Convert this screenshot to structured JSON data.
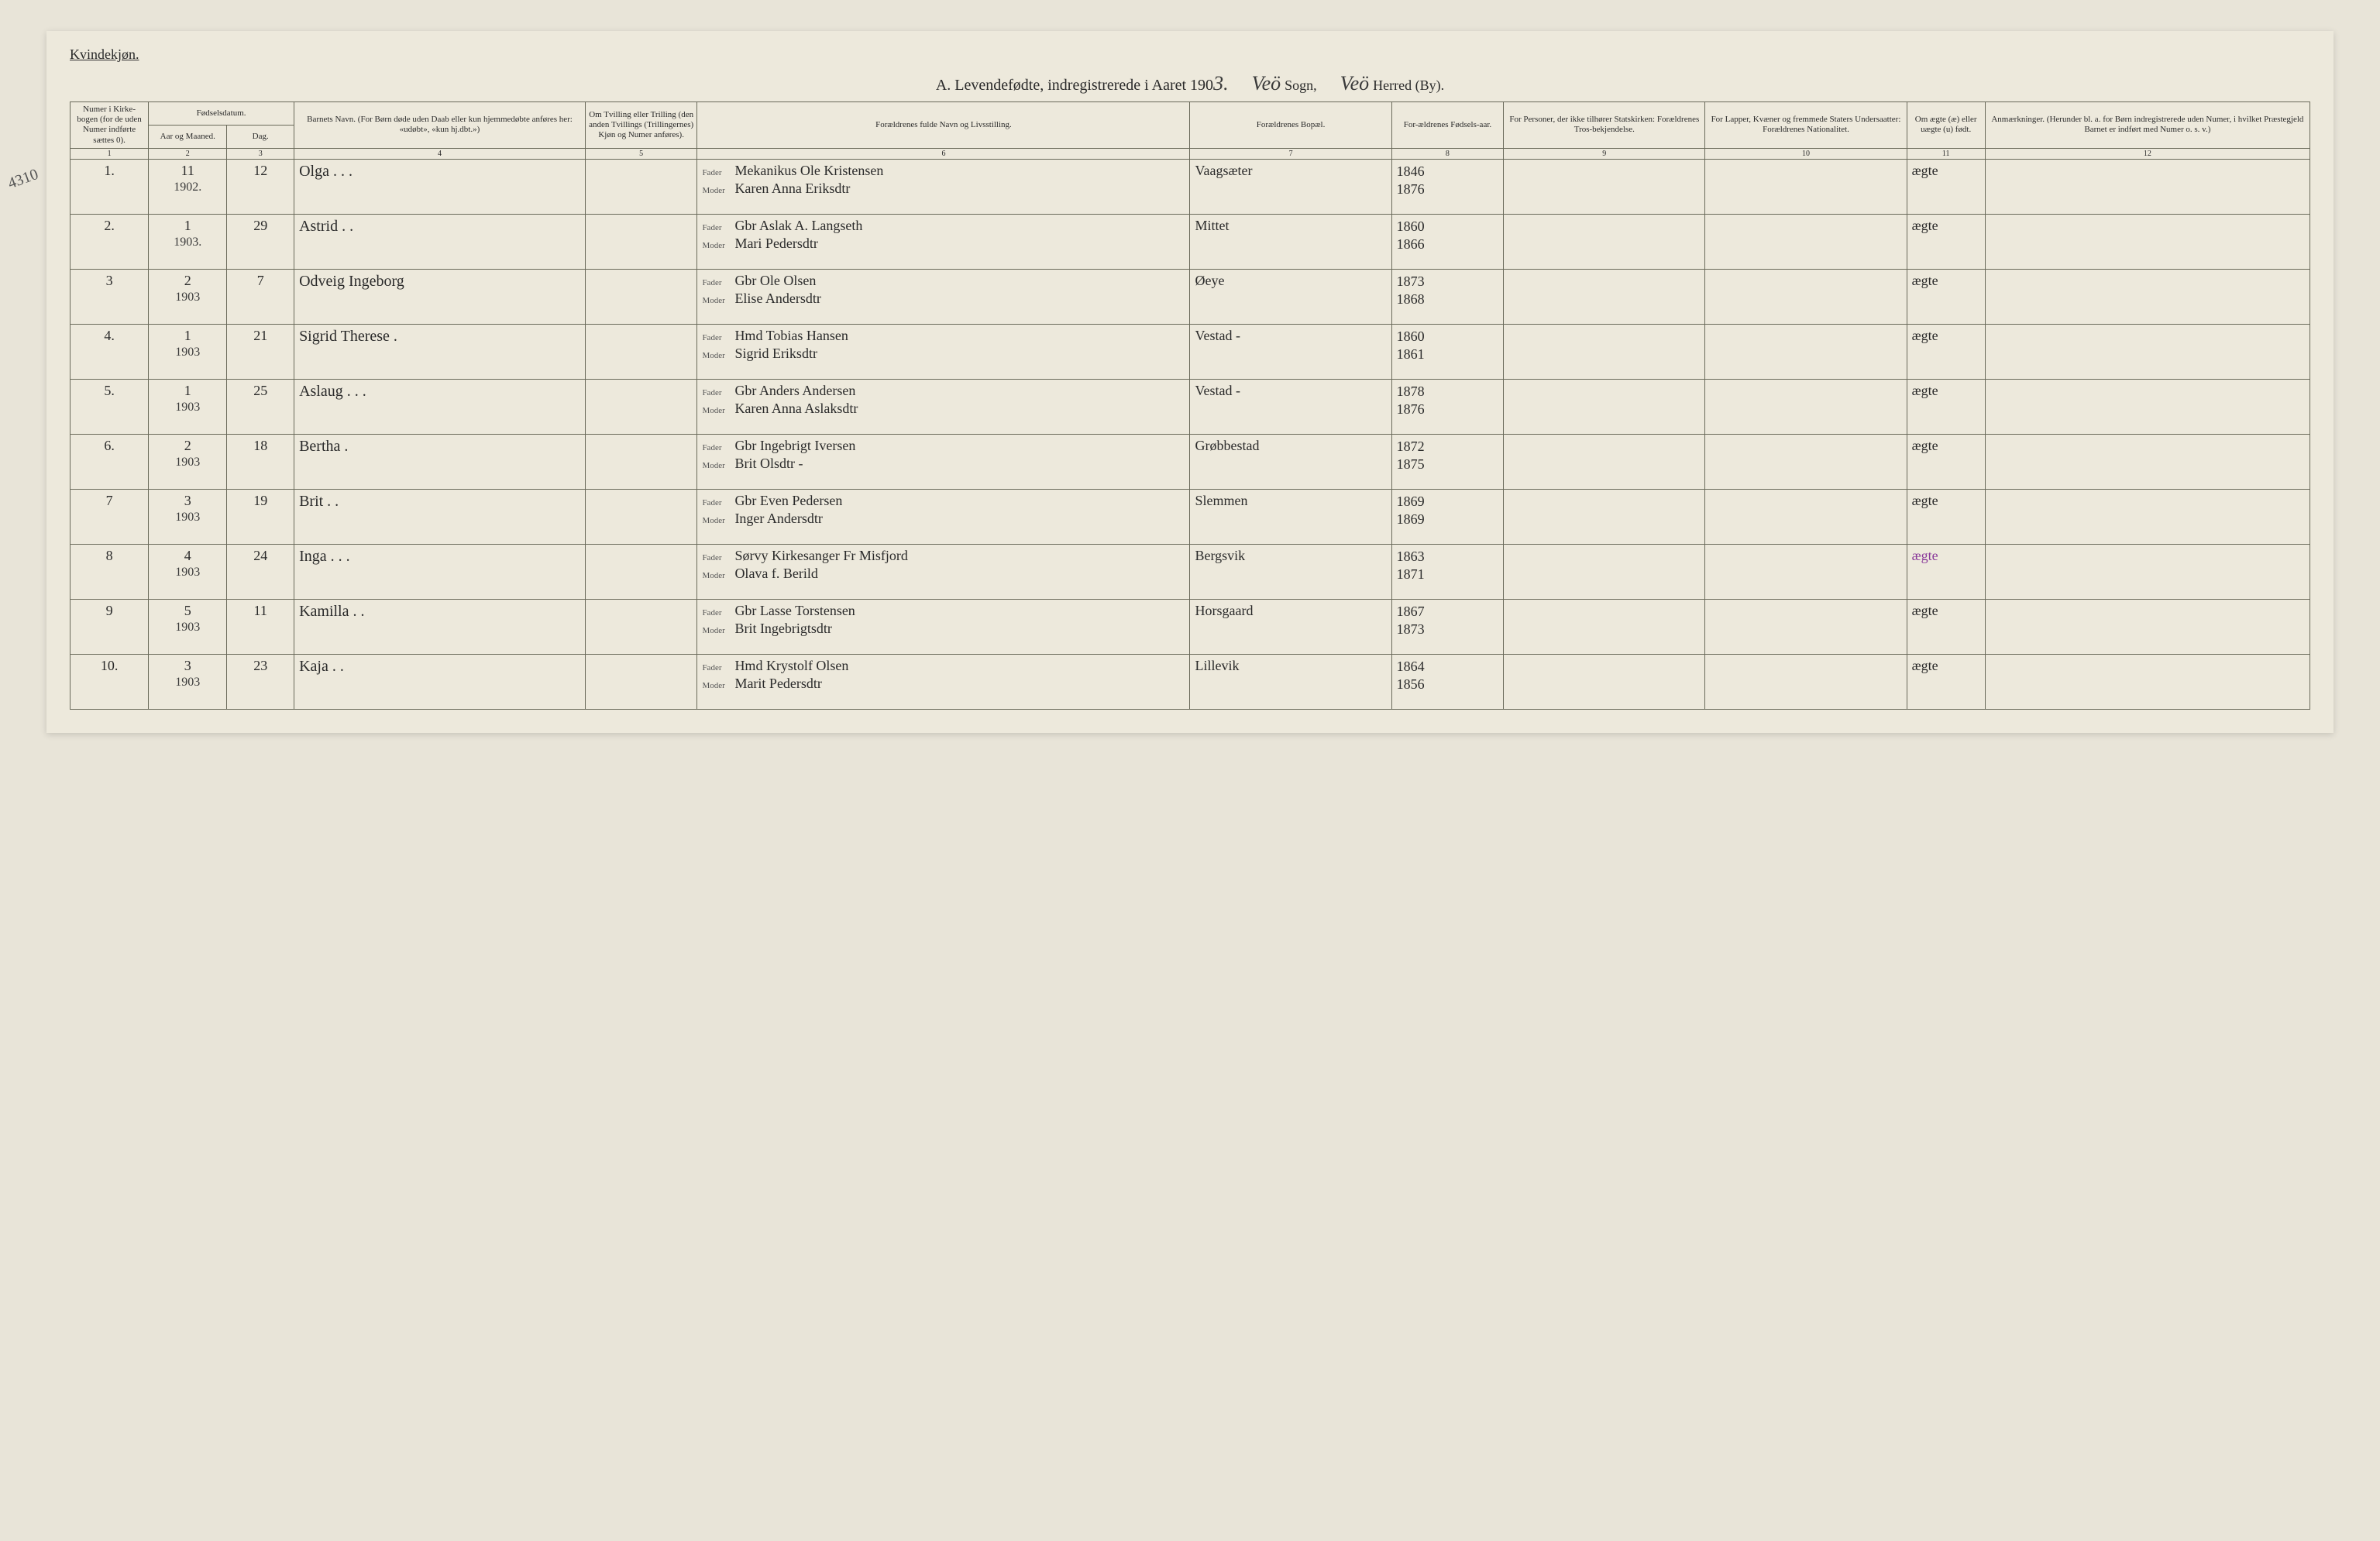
{
  "header": {
    "gender_label": "Kvindekjøn.",
    "title": "A.  Levendefødte, indregistrerede i Aaret 190",
    "year_suffix": "3.",
    "sogn_value": "Veö",
    "sogn_label": "Sogn,",
    "herred_value": "Veö",
    "herred_label": "Herred (By)."
  },
  "margin_note": "4310",
  "columns": {
    "c1": "Numer i Kirke-bogen (for de uden Numer indførte sættes 0).",
    "c2_group": "Fødselsdatum.",
    "c2": "Aar og Maaned.",
    "c3": "Dag.",
    "c4": "Barnets Navn.\n(For Børn døde uden Daab eller kun hjemmedøbte anføres her: «udøbt», «kun hj.dbt.»)",
    "c5": "Om Tvilling eller Trilling (den anden Tvillings (Trillingernes) Kjøn og Numer anføres).",
    "c6": "Forældrenes fulde Navn og Livsstilling.",
    "c7": "Forældrenes Bopæl.",
    "c8": "For-ældrenes Fødsels-aar.",
    "c9": "For Personer, der ikke tilhører Statskirken: Forældrenes Tros-bekjendelse.",
    "c10": "For Lapper, Kvæner og fremmede Staters Undersaatter: Forældrenes Nationalitet.",
    "c11": "Om ægte (æ) eller uægte (u) født.",
    "c12": "Anmærkninger.\n(Herunder bl. a. for Børn indregistrerede uden Numer, i hvilket Præstegjeld Barnet er indført med Numer o. s. v.)"
  },
  "colnums": [
    "1",
    "2",
    "3",
    "4",
    "5",
    "6",
    "7",
    "8",
    "9",
    "10",
    "11",
    "12"
  ],
  "parent_labels": {
    "father": "Fader",
    "mother": "Moder"
  },
  "rows": [
    {
      "num": "1.",
      "month": "11",
      "year": "1902.",
      "day": "12",
      "name": "Olga   .   .   .",
      "father": "Mekanikus Ole Kristensen",
      "mother": "Karen Anna Eriksdtr",
      "residence": "Vaagsæter",
      "father_year": "1846",
      "mother_year": "1876",
      "legit": "ægte"
    },
    {
      "num": "2.",
      "month": "1",
      "year": "1903.",
      "day": "29",
      "name": "Astrid   .   .",
      "father": "Gbr Aslak A. Langseth",
      "mother": "Mari Pedersdtr",
      "residence": "Mittet",
      "father_year": "1860",
      "mother_year": "1866",
      "legit": "ægte"
    },
    {
      "num": "3",
      "month": "2",
      "year": "1903",
      "day": "7",
      "name": "Odveig Ingeborg",
      "father": "Gbr Ole Olsen",
      "mother": "Elise Andersdtr",
      "residence": "Øeye",
      "father_year": "1873",
      "mother_year": "1868",
      "legit": "ægte"
    },
    {
      "num": "4.",
      "month": "1",
      "year": "1903",
      "day": "21",
      "name": "Sigrid Therese   .",
      "father": "Hmd Tobias Hansen",
      "mother": "Sigrid Eriksdtr",
      "residence": "Vestad -",
      "father_year": "1860",
      "mother_year": "1861",
      "legit": "ægte"
    },
    {
      "num": "5.",
      "month": "1",
      "year": "1903",
      "day": "25",
      "name": "Aslaug   .   .   .",
      "father": "Gbr Anders Andersen",
      "mother": "Karen Anna Aslaksdtr",
      "residence": "Vestad  -",
      "father_year": "1878",
      "mother_year": "1876",
      "legit": "ægte"
    },
    {
      "num": "6.",
      "month": "2",
      "year": "1903",
      "day": "18",
      "name": "Bertha   .",
      "father": "Gbr Ingebrigt Iversen",
      "mother": "Brit Olsdtr   -",
      "residence": "Grøbbestad",
      "father_year": "1872",
      "mother_year": "1875",
      "legit": "ægte"
    },
    {
      "num": "7",
      "month": "3",
      "year": "1903",
      "day": "19",
      "name": "Brit   .   .",
      "father": "Gbr Even Pedersen",
      "mother": "Inger Andersdtr",
      "residence": "Slemmen",
      "father_year": "1869",
      "mother_year": "1869",
      "legit": "ægte"
    },
    {
      "num": "8",
      "month": "4",
      "year": "1903",
      "day": "24",
      "name": "Inga   .   .   .",
      "father": "Sørvy Kirkesanger Fr Misfjord",
      "mother": "Olava f. Berild",
      "residence": "Bergsvik",
      "father_year": "1863",
      "mother_year": "1871",
      "legit": "ægte",
      "legit_color": "purple"
    },
    {
      "num": "9",
      "month": "5",
      "year": "1903",
      "day": "11",
      "name": "Kamilla   .   .",
      "father": "Gbr Lasse Torstensen",
      "mother": "Brit Ingebrigtsdtr",
      "residence": "Horsgaard",
      "father_year": "1867",
      "mother_year": "1873",
      "legit": "ægte"
    },
    {
      "num": "10.",
      "month": "3",
      "year": "1903",
      "day": "23",
      "name": "Kaja   .   .",
      "father": "Hmd Krystolf Olsen",
      "mother": "Marit Pedersdtr",
      "residence": "Lillevik",
      "father_year": "1864",
      "mother_year": "1856",
      "legit": "ægte"
    }
  ]
}
